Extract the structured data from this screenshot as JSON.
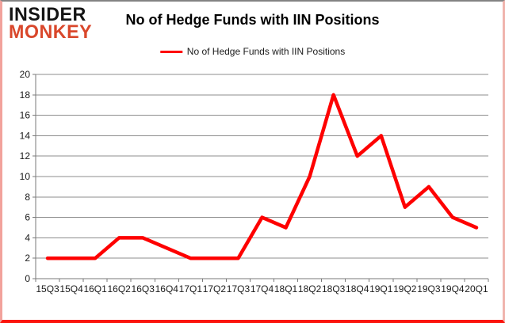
{
  "logo": {
    "line1": "INSIDER",
    "line2": "MONKEY"
  },
  "colors": {
    "logo_black": "#141414",
    "logo_accent": "#d9472b",
    "series_red": "#fe0000",
    "gridline_gray": "#8d8d8d",
    "frame_bottom_red": "#fb140c"
  },
  "chart_data": {
    "type": "line",
    "title": "No of Hedge Funds with IIN Positions",
    "legend": [
      "No of Hedge Funds with IIN Positions"
    ],
    "legend_position": "top-center",
    "grid": "horizontal",
    "categories": [
      "15Q3",
      "15Q4",
      "16Q1",
      "16Q2",
      "16Q3",
      "16Q4",
      "17Q1",
      "17Q2",
      "17Q3",
      "17Q4",
      "18Q1",
      "18Q2",
      "18Q3",
      "18Q4",
      "19Q1",
      "19Q2",
      "19Q3",
      "19Q4",
      "20Q1"
    ],
    "series": [
      {
        "name": "No of Hedge Funds with IIN Positions",
        "color": "#fe0000",
        "values": [
          2,
          2,
          2,
          4,
          4,
          3,
          2,
          2,
          2,
          6,
          5,
          10,
          18,
          12,
          14,
          7,
          9,
          6,
          5
        ]
      }
    ],
    "xlabel": "",
    "ylabel": "",
    "ylim": [
      0,
      20
    ],
    "ytick_step": 2,
    "yticks": [
      0,
      2,
      4,
      6,
      8,
      10,
      12,
      14,
      16,
      18,
      20
    ]
  }
}
